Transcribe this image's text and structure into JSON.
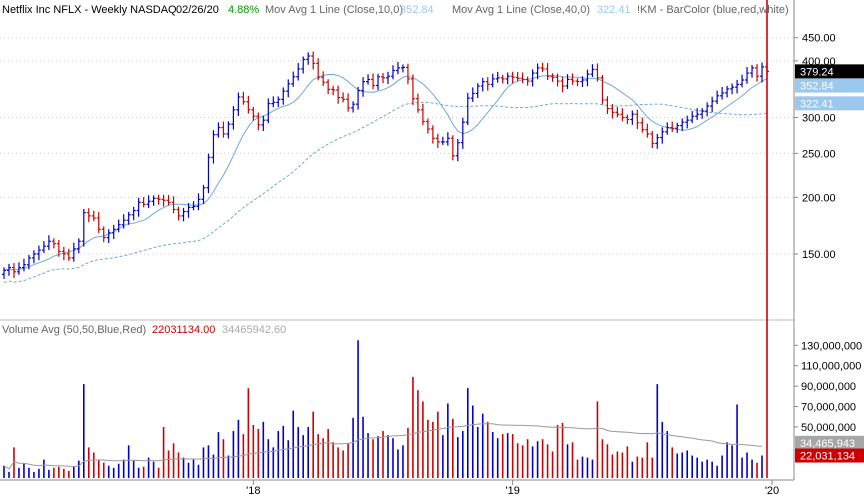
{
  "header": {
    "title": "Netflix Inc  NFLX - Weekly  NASDAQ",
    "date": "02/26/20",
    "change": "4.88%",
    "ma10_label": "Mov Avg 1 Line (Close,10,0)",
    "ma10_value": "352.84",
    "ma40_label": "Mov Avg 1 Line (Close,40,0)",
    "ma40_value": "322.41",
    "barcolor_label": "!KM - BarColor (blue,red,white)"
  },
  "volume_header": {
    "title": "Volume Avg (50,50,Blue,Red)",
    "current": "22031134.00",
    "average": "34465942.60"
  },
  "price_axis": {
    "ticks": [
      {
        "value": 450,
        "label": "450.00"
      },
      {
        "value": 400,
        "label": "400.00"
      },
      {
        "value": 300,
        "label": "300.00"
      },
      {
        "value": 250,
        "label": "250.00"
      },
      {
        "value": 200,
        "label": "200.00"
      },
      {
        "value": 150,
        "label": "150.00"
      }
    ],
    "badges": [
      {
        "value": 379.24,
        "label": "379.24",
        "bg": "#000000",
        "fg": "#ffffff"
      },
      {
        "value": 352.84,
        "label": "352.84",
        "bg": "#9cc8ee",
        "fg": "#ffffff"
      },
      {
        "value": 322.41,
        "label": "322.41",
        "bg": "#9cc8ee",
        "fg": "#ffffff"
      }
    ]
  },
  "volume_axis": {
    "ticks": [
      {
        "value": 130000000,
        "label": "130,000,000"
      },
      {
        "value": 110000000,
        "label": "110,000,000"
      },
      {
        "value": 90000000,
        "label": "90,000,000"
      },
      {
        "value": 70000000,
        "label": "70,000,000"
      },
      {
        "value": 50000000,
        "label": "50,000,000"
      }
    ],
    "badges": [
      {
        "value": 34465943,
        "label": "34,465,943",
        "bg": "#a6a6a6",
        "fg": "#ffffff"
      },
      {
        "value": 22031134,
        "label": "22,031,134",
        "bg": "#cc0000",
        "fg": "#ffffff"
      }
    ]
  },
  "x_axis": {
    "ticks": [
      {
        "week": 50,
        "label": "'18"
      },
      {
        "week": 102,
        "label": "'19"
      },
      {
        "week": 154,
        "label": "'20"
      }
    ]
  },
  "colors": {
    "up": "#0000cc",
    "down": "#cc0000",
    "ma10": "#6fa8dc",
    "ma40": "#6fa8dc",
    "vol_avg": "#999999",
    "change": "#009900",
    "grid": "#cccccc"
  },
  "chart_data": {
    "type": "ohlc",
    "scale": "log",
    "interval": "weekly",
    "ylim": [
      110,
      480
    ],
    "volume_ylim": [
      0,
      145000000
    ],
    "closes": [
      138,
      140,
      137,
      140,
      142,
      147,
      150,
      153,
      156,
      160,
      158,
      152,
      150,
      147,
      154,
      160,
      185,
      182,
      180,
      170,
      163,
      167,
      170,
      174,
      178,
      183,
      187,
      195,
      193,
      196,
      199,
      198,
      197,
      195,
      188,
      182,
      186,
      190,
      191,
      198,
      210,
      245,
      275,
      285,
      276,
      290,
      312,
      333,
      325,
      312,
      302,
      289,
      296,
      322,
      324,
      329,
      343,
      356,
      369,
      384,
      403,
      410,
      395,
      368,
      359,
      346,
      345,
      332,
      329,
      315,
      321,
      344,
      360,
      364,
      353,
      369,
      367,
      370,
      381,
      386,
      387,
      365,
      330,
      312,
      294,
      283,
      270,
      265,
      265,
      270,
      247,
      264,
      293,
      331,
      339,
      352,
      360,
      355,
      365,
      367,
      365,
      370,
      368,
      366,
      364,
      361,
      376,
      386,
      384,
      370,
      368,
      361,
      352,
      364,
      361,
      360,
      363,
      374,
      383,
      367,
      328,
      314,
      308,
      305,
      300,
      297,
      305,
      292,
      282,
      276,
      263,
      271,
      279,
      285,
      284,
      288,
      293,
      296,
      302,
      305,
      310,
      318,
      326,
      335,
      340,
      347,
      350,
      355,
      363,
      376,
      386,
      370,
      388,
      379.24
    ],
    "volumes": [
      12,
      6,
      30,
      10,
      14,
      10,
      6,
      9,
      18,
      8,
      10,
      11,
      9,
      7,
      11,
      17,
      92,
      30,
      25,
      18,
      15,
      12,
      10,
      14,
      18,
      32,
      17,
      10,
      11,
      20,
      16,
      10,
      50,
      27,
      34,
      25,
      20,
      15,
      18,
      13,
      30,
      32,
      23,
      45,
      38,
      22,
      46,
      57,
      43,
      88,
      52,
      48,
      55,
      38,
      30,
      46,
      51,
      37,
      66,
      50,
      42,
      50,
      65,
      43,
      39,
      48,
      35,
      30,
      27,
      34,
      59,
      135,
      60,
      44,
      38,
      41,
      46,
      42,
      39,
      28,
      32,
      49,
      99,
      86,
      75,
      57,
      55,
      65,
      42,
      73,
      58,
      40,
      46,
      88,
      71,
      50,
      63,
      55,
      45,
      39,
      43,
      44,
      43,
      34,
      32,
      38,
      31,
      36,
      38,
      33,
      26,
      52,
      54,
      33,
      35,
      18,
      21,
      20,
      18,
      75,
      38,
      33,
      23,
      26,
      25,
      31,
      16,
      21,
      20,
      35,
      20,
      92,
      55,
      46,
      30,
      24,
      25,
      27,
      22,
      20,
      16,
      18,
      16,
      12,
      22,
      35,
      32,
      72,
      20,
      25,
      18,
      15,
      22.03
    ],
    "volume_avg_last": 34465943,
    "volume_last": 22031134
  }
}
